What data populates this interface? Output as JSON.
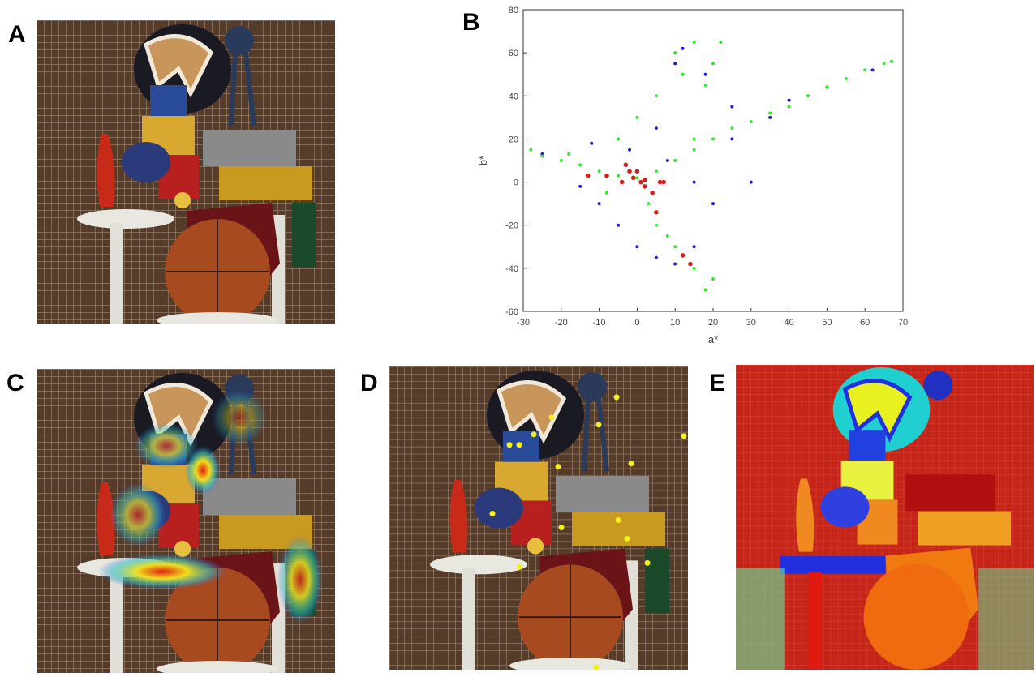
{
  "panel_labels": [
    "A",
    "B",
    "C",
    "D",
    "E"
  ],
  "chart_data": {
    "type": "scatter",
    "xlabel": "a*",
    "ylabel": "b*",
    "xlim": [
      -30,
      70
    ],
    "ylim": [
      -60,
      80
    ],
    "xticks": [
      -30,
      -20,
      -10,
      0,
      10,
      20,
      30,
      40,
      50,
      60,
      70
    ],
    "yticks": [
      -60,
      -40,
      -20,
      0,
      20,
      40,
      60,
      80
    ],
    "series": [
      {
        "color": "#2020c8",
        "x": [
          -25,
          -15,
          -10,
          -5,
          0,
          5,
          10,
          15,
          10,
          12,
          18,
          25,
          40,
          50,
          62,
          5,
          -2,
          30,
          20,
          8,
          -12,
          15,
          25,
          35
        ],
        "values": [
          13,
          -2,
          -10,
          -20,
          -30,
          -35,
          -38,
          -30,
          55,
          62,
          50,
          35,
          38,
          44,
          52,
          25,
          15,
          0,
          -10,
          10,
          18,
          0,
          20,
          30
        ]
      },
      {
        "color": "#33e633",
        "x": [
          -28,
          -25,
          -20,
          -15,
          -10,
          -5,
          0,
          5,
          10,
          15,
          20,
          25,
          30,
          35,
          40,
          45,
          50,
          55,
          60,
          65,
          67,
          10,
          15,
          20,
          18,
          5,
          0,
          -5,
          5,
          8,
          10,
          15,
          18,
          20,
          3,
          -8,
          12,
          22,
          15,
          -18
        ],
        "values": [
          15,
          12,
          10,
          8,
          5,
          3,
          2,
          5,
          10,
          15,
          20,
          25,
          28,
          32,
          35,
          40,
          44,
          48,
          52,
          55,
          56,
          60,
          65,
          55,
          45,
          40,
          30,
          20,
          -20,
          -25,
          -30,
          -40,
          -50,
          -45,
          -10,
          -5,
          50,
          65,
          20,
          13
        ]
      },
      {
        "color": "#d02020",
        "x": [
          -13,
          -8,
          -3,
          -2,
          -1,
          0,
          1,
          2,
          2,
          4,
          5,
          6,
          7,
          12,
          14,
          -4
        ],
        "values": [
          3,
          3,
          8,
          5,
          2,
          5,
          0,
          1,
          -2,
          -5,
          -14,
          0,
          0,
          -34,
          -38,
          0
        ]
      }
    ]
  }
}
